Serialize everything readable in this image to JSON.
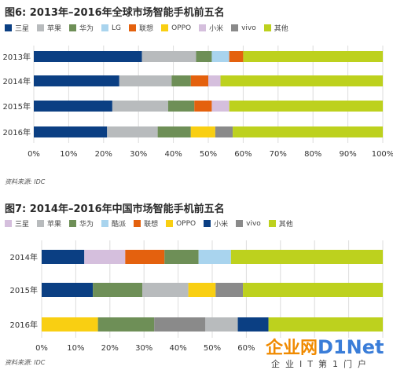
{
  "source_label": "资料来源: IDC",
  "watermark": {
    "cn": "企业网",
    "en": "D1Net",
    "sub": "企业IT第1门户"
  },
  "chart_data": [
    {
      "type": "bar",
      "orientation": "horizontal",
      "stacked": true,
      "title": "图6: 2013年–2016年全球市场智能手机前五名",
      "categories": [
        "2013年",
        "2014年",
        "2015年",
        "2016年"
      ],
      "series": [
        {
          "name": "三星",
          "color": "#0b3f83",
          "values": [
            31,
            24.5,
            22.5,
            21
          ]
        },
        {
          "name": "苹果",
          "color": "#b8bbbd",
          "values": [
            15.5,
            15,
            16,
            14.5
          ]
        },
        {
          "name": "华为",
          "color": "#6e8f57",
          "values": [
            4.5,
            5.5,
            7.5,
            9.5
          ]
        },
        {
          "name": "LG",
          "color": "#a9d4ee",
          "values": [
            5,
            0,
            0,
            0
          ]
        },
        {
          "name": "联想",
          "color": "#e4610e",
          "values": [
            4,
            5,
            5,
            0
          ]
        },
        {
          "name": "OPPO",
          "color": "#f9cf12",
          "values": [
            0,
            0,
            0,
            7
          ]
        },
        {
          "name": "小米",
          "color": "#d5bfdd",
          "values": [
            0,
            3.5,
            5,
            0
          ]
        },
        {
          "name": "vivo",
          "color": "#8a8a8a",
          "values": [
            0,
            0,
            0,
            5
          ]
        },
        {
          "name": "其他",
          "color": "#bdd11e",
          "values": [
            40,
            46.5,
            44,
            43
          ]
        }
      ],
      "xlim": [
        0,
        100
      ],
      "xticks": [
        "0%",
        "10%",
        "20%",
        "30%",
        "40%",
        "50%",
        "60%",
        "70%",
        "80%",
        "90%",
        "100%"
      ],
      "legend": "top"
    },
    {
      "type": "bar",
      "orientation": "horizontal",
      "stacked": true,
      "title": "图7: 2014年–2016年中国市场智能手机前五名",
      "categories": [
        "2014年",
        "2015年",
        "2016年"
      ],
      "series": [
        {
          "name": "三星",
          "color": "#d5bfdd",
          "values": [
            0,
            0,
            0
          ]
        },
        {
          "name": "苹果",
          "color": "#b8bbbd",
          "values": [
            0,
            0,
            0
          ]
        },
        {
          "name": "华为",
          "color": "#6e8f57",
          "values": [
            0,
            0,
            0
          ]
        },
        {
          "name": "酷派",
          "color": "#a9d4ee",
          "values": [
            0,
            0,
            0
          ]
        },
        {
          "name": "联想",
          "color": "#e4610e",
          "values": [
            0,
            0,
            0
          ]
        },
        {
          "name": "OPPO",
          "color": "#f9cf12",
          "values": [
            0,
            0,
            0
          ]
        },
        {
          "name": "小米",
          "color": "#0b3f83",
          "values": [
            0,
            0,
            0
          ]
        },
        {
          "name": "vivo",
          "color": "#8a8a8a",
          "values": [
            0,
            0,
            0
          ]
        },
        {
          "name": "其他",
          "color": "#bdd11e",
          "values": [
            0,
            0,
            0
          ]
        }
      ],
      "bars": [
        {
          "category": "2014年",
          "segments": [
            {
              "series": "小米",
              "value": 12.5
            },
            {
              "series": "三星",
              "value": 12
            },
            {
              "series": "联想",
              "value": 11.5
            },
            {
              "series": "华为",
              "value": 10
            },
            {
              "series": "酷派",
              "value": 9.5
            },
            {
              "series": "其他",
              "value": 44.5
            }
          ]
        },
        {
          "category": "2015年",
          "segments": [
            {
              "series": "小米",
              "value": 15
            },
            {
              "series": "华为",
              "value": 14.5
            },
            {
              "series": "苹果",
              "value": 13.5
            },
            {
              "series": "OPPO",
              "value": 8
            },
            {
              "series": "vivo",
              "value": 8
            },
            {
              "series": "其他",
              "value": 41
            }
          ]
        },
        {
          "category": "2016年",
          "segments": [
            {
              "series": "OPPO",
              "value": 16.5
            },
            {
              "series": "华为",
              "value": 16.5
            },
            {
              "series": "vivo",
              "value": 15
            },
            {
              "series": "苹果",
              "value": 9.5
            },
            {
              "series": "小米",
              "value": 9
            },
            {
              "series": "其他",
              "value": 33.5
            }
          ]
        }
      ],
      "xlim": [
        0,
        100
      ],
      "xticks": [
        "0%",
        "10%",
        "20%",
        "30%",
        "40%",
        "50%",
        "60%"
      ],
      "legend": "top"
    }
  ]
}
